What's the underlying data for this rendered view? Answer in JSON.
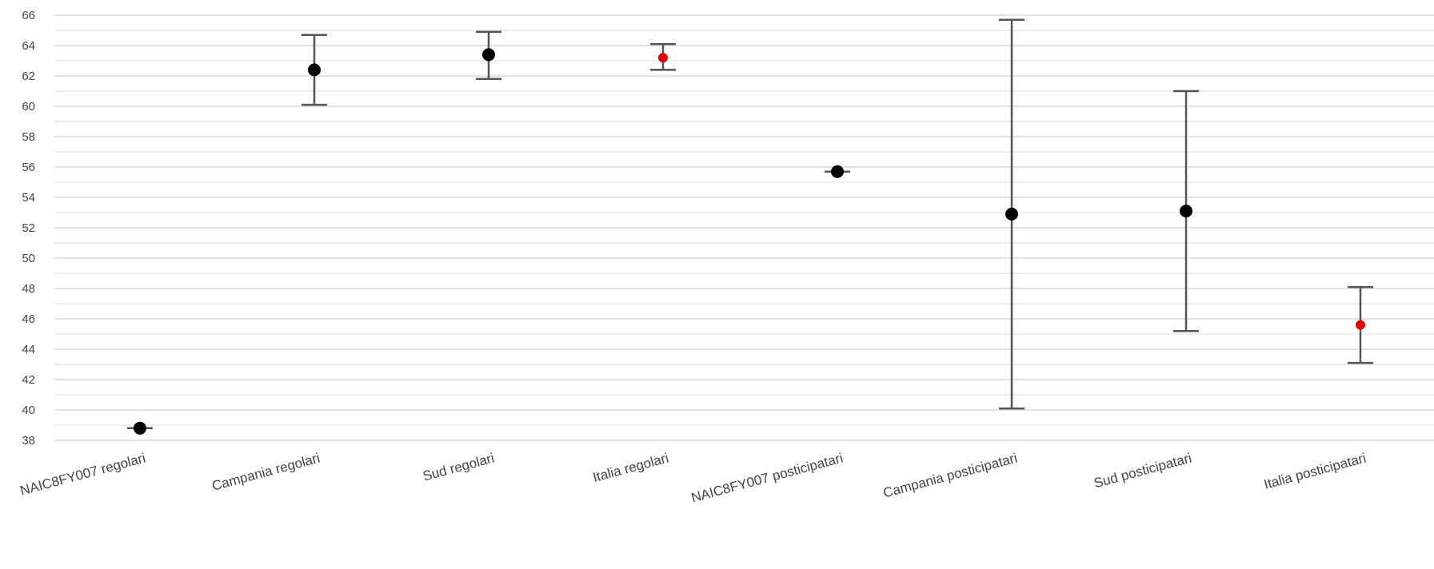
{
  "chart_data": {
    "type": "scatter",
    "title": "",
    "xlabel": "",
    "ylabel": "",
    "ylim": [
      38,
      66
    ],
    "y_ticks": [
      "38",
      "40",
      "42",
      "44",
      "46",
      "48",
      "50",
      "52",
      "54",
      "56",
      "58",
      "60",
      "62",
      "64",
      "66"
    ],
    "grid": true,
    "categories": [
      "NAIC8FY007 regolari",
      "Campania regolari",
      "Sud regolari",
      "Italia regolari",
      "NAIC8FY007 posticipatari",
      "Campania posticipatari",
      "Sud posticipatari",
      "Italia posticipatari"
    ],
    "points": [
      {
        "value": 38.8,
        "low": 38.8,
        "high": 38.8,
        "color": "#000000"
      },
      {
        "value": 62.4,
        "low": 60.1,
        "high": 64.7,
        "color": "#000000"
      },
      {
        "value": 63.4,
        "low": 61.8,
        "high": 64.9,
        "color": "#000000"
      },
      {
        "value": 63.2,
        "low": 62.4,
        "high": 64.1,
        "color": "#e00000"
      },
      {
        "value": 55.7,
        "low": 55.7,
        "high": 55.7,
        "color": "#000000"
      },
      {
        "value": 52.9,
        "low": 40.1,
        "high": 65.7,
        "color": "#000000"
      },
      {
        "value": 53.1,
        "low": 45.2,
        "high": 61.0,
        "color": "#000000"
      },
      {
        "value": 45.6,
        "low": 43.1,
        "high": 48.1,
        "color": "#e00000"
      }
    ],
    "colors": {
      "grid": "#d0d0d0",
      "error_bar": "#555555"
    }
  }
}
